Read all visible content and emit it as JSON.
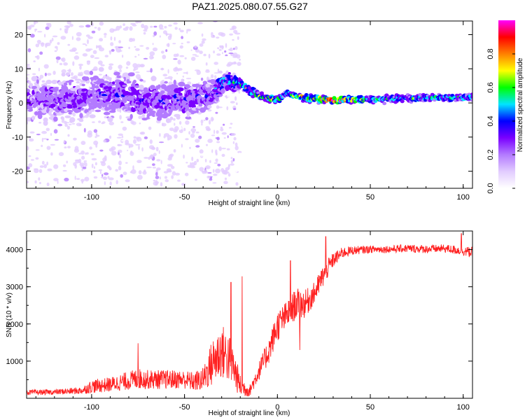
{
  "title": "PAZ1.2025.080.07.55.G27",
  "chart_data": [
    {
      "type": "heatmap",
      "title": "PAZ1.2025.080.07.55.G27",
      "xlabel": "Height of straight line (km)",
      "ylabel": "Frequency (Hz)",
      "xlim": [
        -135,
        105
      ],
      "ylim": [
        -25,
        24
      ],
      "xticks": [
        "-100",
        "-50",
        "0",
        "50",
        "100"
      ],
      "yticks": [
        "20",
        "10",
        "0",
        "-10",
        "-20"
      ],
      "colorbar": {
        "label": "Normalized spectral amplitude",
        "range": [
          0,
          1
        ],
        "ticks": [
          "0.0",
          "0.2",
          "0.4",
          "0.6",
          "0.8"
        ],
        "colors": [
          "#ffffff",
          "#e2ccff",
          "#b37bff",
          "#7a00ff",
          "#0000ff",
          "#00e5ff",
          "#00ff00",
          "#ffff00",
          "#ff8000",
          "#ff0000",
          "#ff00ff"
        ]
      },
      "ridge": {
        "x": [
          -135,
          -110,
          -90,
          -70,
          -50,
          -35,
          -28,
          -20,
          -10,
          0,
          5,
          10,
          20,
          30,
          50,
          80,
          105
        ],
        "freq": [
          0.5,
          1.5,
          2.5,
          1.0,
          0.8,
          2.5,
          6.5,
          5.5,
          2.0,
          0.8,
          3.0,
          1.8,
          1.2,
          0.8,
          1.0,
          1.5,
          1.6
        ],
        "amplitude": [
          0.28,
          0.3,
          0.32,
          0.34,
          0.34,
          0.36,
          0.5,
          0.55,
          0.62,
          0.7,
          0.5,
          0.75,
          0.75,
          0.95,
          0.55,
          0.55,
          0.55
        ],
        "spread": [
          5,
          6,
          6,
          5,
          5,
          4,
          2.5,
          1.8,
          1.2,
          0.9,
          0.9,
          0.9,
          0.9,
          0.9,
          0.9,
          0.9,
          0.9
        ]
      }
    },
    {
      "type": "line",
      "title": "",
      "xlabel": "Height of straight line (km)",
      "ylabel": "SNR (10 * v/v)",
      "xlim": [
        -135,
        105
      ],
      "ylim": [
        0,
        4500
      ],
      "xticks": [
        "-100",
        "-50",
        "0",
        "50",
        "100"
      ],
      "yticks": [
        "1000",
        "2000",
        "3000",
        "4000"
      ],
      "color": "#ff2020",
      "x": [
        -135,
        -120,
        -105,
        -100,
        -90,
        -80,
        -75,
        -70,
        -60,
        -50,
        -45,
        -40,
        -35,
        -30,
        -25,
        -20,
        -15,
        -10,
        -5,
        0,
        5,
        10,
        15,
        20,
        25,
        30,
        35,
        40,
        50,
        60,
        70,
        80,
        90,
        100,
        105
      ],
      "y": [
        150,
        160,
        200,
        300,
        350,
        450,
        500,
        480,
        480,
        480,
        420,
        480,
        900,
        1200,
        950,
        300,
        180,
        700,
        1200,
        1900,
        2200,
        2500,
        2500,
        2800,
        3300,
        3700,
        3900,
        3960,
        4000,
        4000,
        4020,
        4000,
        4020,
        3950,
        3900
      ],
      "noise": [
        70,
        70,
        100,
        180,
        200,
        250,
        280,
        260,
        260,
        250,
        260,
        320,
        650,
        750,
        650,
        300,
        150,
        250,
        350,
        420,
        380,
        420,
        380,
        300,
        300,
        200,
        150,
        120,
        100,
        100,
        110,
        110,
        110,
        130,
        150
      ],
      "peaks": [
        {
          "x": -75,
          "y": 1480
        },
        {
          "x": -25,
          "y": 3120
        },
        {
          "x": -19,
          "y": 3280
        },
        {
          "x": 7,
          "y": 3700
        },
        {
          "x": 12,
          "y": 1300
        },
        {
          "x": 26,
          "y": 4350
        },
        {
          "x": 99,
          "y": 4430
        }
      ]
    }
  ]
}
